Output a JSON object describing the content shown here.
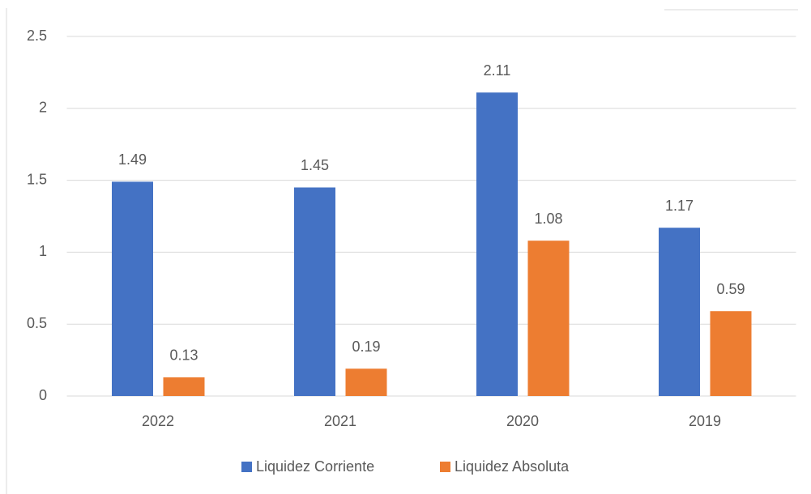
{
  "chart_data": {
    "type": "bar",
    "categories": [
      "2022",
      "2021",
      "2020",
      "2019"
    ],
    "series": [
      {
        "name": "Liquidez Corriente",
        "color": "#4472c4",
        "values": [
          1.49,
          1.45,
          2.11,
          1.17
        ]
      },
      {
        "name": "Liquidez Absoluta",
        "color": "#ed7d31",
        "values": [
          0.13,
          0.19,
          1.08,
          0.59
        ]
      }
    ],
    "ylim": [
      0,
      2.5
    ],
    "yticks": [
      0,
      0.5,
      1,
      1.5,
      2,
      2.5
    ],
    "grid": true,
    "legend": "bottom"
  }
}
